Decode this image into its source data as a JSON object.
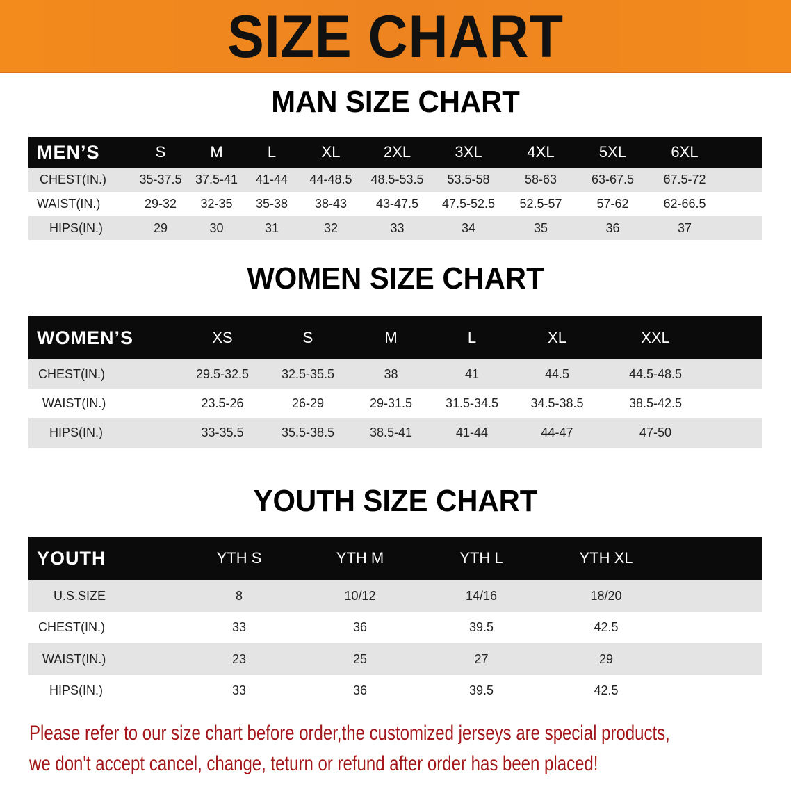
{
  "banner": {
    "title": "SIZE CHART",
    "color": "#f08a1e"
  },
  "men": {
    "title": "MAN SIZE CHART",
    "header": [
      "MEN’S",
      "S",
      "M",
      "L",
      "XL",
      "2XL",
      "3XL",
      "4XL",
      "5XL",
      "6XL"
    ],
    "rows": [
      [
        "CHEST(IN.)",
        "35-37.5",
        "37.5-41",
        "41-44",
        "44-48.5",
        "48.5-53.5",
        "53.5-58",
        "58-63",
        "63-67.5",
        "67.5-72"
      ],
      [
        "WAIST(IN.)",
        "29-32",
        "32-35",
        "35-38",
        "38-43",
        "43-47.5",
        "47.5-52.5",
        "52.5-57",
        "57-62",
        "62-66.5"
      ],
      [
        "HIPS(IN.)",
        "29",
        "30",
        "31",
        "32",
        "33",
        "34",
        "35",
        "36",
        "37"
      ]
    ]
  },
  "women": {
    "title": "WOMEN SIZE CHART",
    "header": [
      "WOMEN’S",
      "XS",
      "S",
      "M",
      "L",
      "XL",
      "XXL"
    ],
    "rows": [
      [
        "CHEST(IN.)",
        "29.5-32.5",
        "32.5-35.5",
        "38",
        "41",
        "44.5",
        "44.5-48.5"
      ],
      [
        "WAIST(IN.)",
        "23.5-26",
        "26-29",
        "29-31.5",
        "31.5-34.5",
        "34.5-38.5",
        "38.5-42.5"
      ],
      [
        "HIPS(IN.)",
        "33-35.5",
        "35.5-38.5",
        "38.5-41",
        "41-44",
        "44-47",
        "47-50"
      ]
    ]
  },
  "youth": {
    "title": "YOUTH SIZE CHART",
    "header": [
      "YOUTH",
      "YTH S",
      "YTH M",
      "YTH L",
      "YTH XL"
    ],
    "rows": [
      [
        "U.S.SIZE",
        "8",
        "10/12",
        "14/16",
        "18/20"
      ],
      [
        "CHEST(IN.)",
        "33",
        "36",
        "39.5",
        "42.5"
      ],
      [
        "WAIST(IN.)",
        "23",
        "25",
        "27",
        "29"
      ],
      [
        "HIPS(IN.)",
        "33",
        "36",
        "39.5",
        "42.5"
      ]
    ]
  },
  "note": {
    "line1": "Please refer to our size chart before order,the customized jerseys are special products,",
    "line2": "we don't accept cancel, change, teturn or refund after order has been placed!",
    "color": "#a3171b"
  }
}
